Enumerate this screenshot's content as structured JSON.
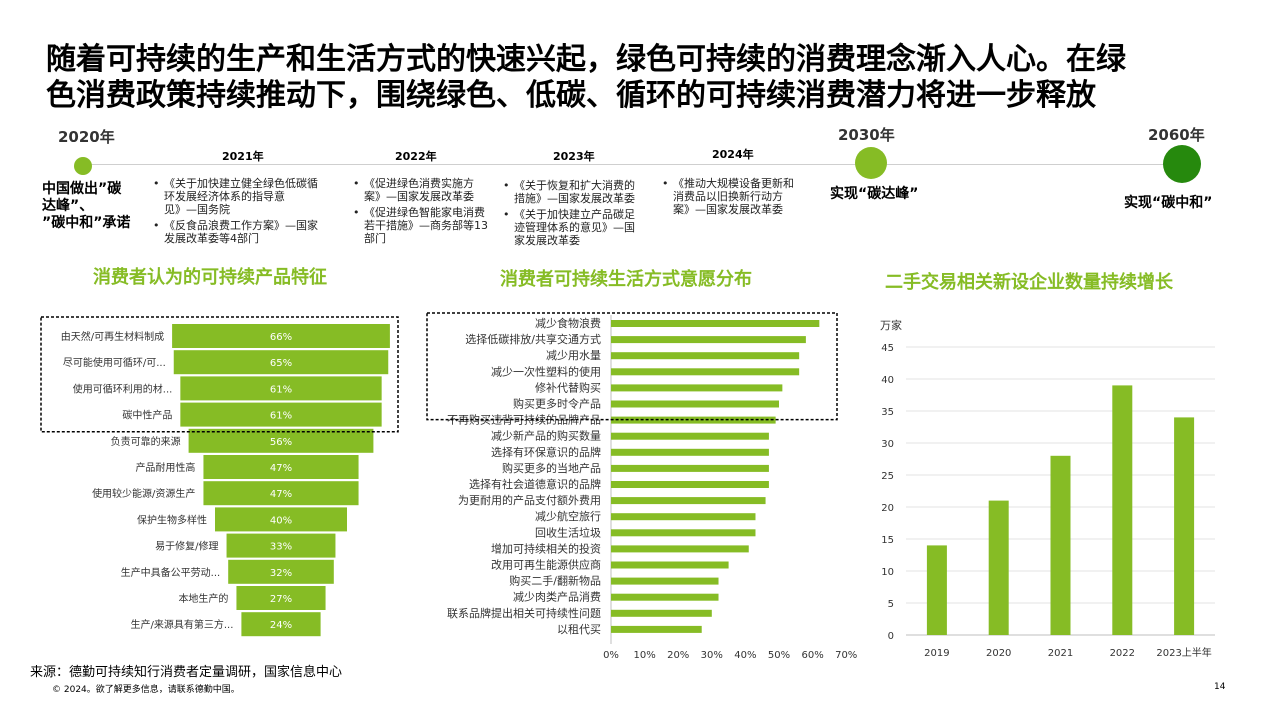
{
  "headline": {
    "line1": "随着可持续的生产和生活方式的快速兴起，绿色可持续的消费理念渐入人心。在绿",
    "line2": "色消费政策持续推动下，围绕绿色、低碳、循环的可持续消费潜力将进一步释放"
  },
  "timeline": {
    "colors": {
      "light_green": "#86bc25",
      "dark_green": "#26890d"
    },
    "y2020": {
      "year": "2020年",
      "note_lines": [
        "中国做出”碳",
        "达峰”、",
        "”碳中和”承诺"
      ]
    },
    "y2021": {
      "year": "2021年",
      "items": [
        {
          "bullet": "•",
          "lines": [
            "《关于加快建立健全绿色低碳循",
            "环发展经济体系的指导意",
            "见》—国务院"
          ]
        },
        {
          "bullet": "•",
          "lines": [
            "《反食品浪费工作方案》—国家",
            "发展改革委等4部门"
          ]
        }
      ]
    },
    "y2022": {
      "year": "2022年",
      "items": [
        {
          "bullet": "•",
          "lines": [
            "《促进绿色消费实施方",
            "案》—国家发展改革委"
          ]
        },
        {
          "bullet": "•",
          "lines": [
            "《促进绿色智能家电消费",
            "若干措施》—商务部等13",
            "部门"
          ]
        }
      ]
    },
    "y2023": {
      "year": "2023年",
      "items": [
        {
          "bullet": "•",
          "lines": [
            "《关于恢复和扩大消费的",
            "措施》—国家发展改革委"
          ]
        },
        {
          "bullet": "•",
          "lines": [
            "《关于加快建立产品碳足",
            "迹管理体系的意见》—国",
            "家发展改革委"
          ]
        }
      ]
    },
    "y2024": {
      "year": "2024年",
      "items": [
        {
          "bullet": "•",
          "lines": [
            "《推动大规模设备更新和",
            "消费品以旧换新行动方",
            "案》—国家发展改革委"
          ]
        }
      ]
    },
    "y2030": {
      "year": "2030年",
      "note": "实现“碳达峰”"
    },
    "y2060": {
      "year": "2060年",
      "note": "实现“碳中和”"
    }
  },
  "section_titles": {
    "funnel": "消费者认为的可持续产品特征",
    "hbar": "消费者可持续生活方式意愿分布",
    "vbar": "二手交易相关新设企业数量持续增长"
  },
  "chart_data": [
    {
      "type": "bar",
      "orientation": "horizontal-funnel",
      "title": "消费者认为的可持续产品特征",
      "categories": [
        "由天然/可再生材料制成",
        "尽可能使用可循环/可...",
        "使用可循环利用的材...",
        "碳中性产品",
        "负责可靠的来源",
        "产品耐用性高",
        "使用较少能源/资源生产",
        "保护生物多样性",
        "易于修复/修理",
        "生产中具备公平劳动...",
        "本地生产的",
        "生产/来源具有第三方..."
      ],
      "values": [
        66,
        65,
        61,
        61,
        56,
        47,
        47,
        40,
        33,
        32,
        27,
        24
      ],
      "data_labels": [
        "66%",
        "65%",
        "61%",
        "61%",
        "56%",
        "47%",
        "47%",
        "40%",
        "33%",
        "32%",
        "27%",
        "24%"
      ],
      "highlighted_top": 4,
      "bar_color": "#86bc25"
    },
    {
      "type": "bar",
      "orientation": "horizontal",
      "title": "消费者可持续生活方式意愿分布",
      "categories": [
        "减少食物浪费",
        "选择低碳排放/共享交通方式",
        "减少用水量",
        "减少一次性塑料的使用",
        "修补代替购买",
        "购买更多时令产品",
        "不再购买违背可持续的品牌产品",
        "减少新产品的购买数量",
        "选择有环保意识的品牌",
        "购买更多的当地产品",
        "选择有社会道德意识的品牌",
        "为更耐用的产品支付额外费用",
        "减少航空旅行",
        "回收生活垃圾",
        "增加可持续相关的投资",
        "改用可再生能源供应商",
        "购买二手/翻新物品",
        "减少肉类产品消费",
        "联系品牌提出相关可持续性问题",
        "以租代买"
      ],
      "values": [
        62,
        58,
        56,
        56,
        51,
        50,
        49,
        47,
        47,
        47,
        47,
        46,
        43,
        43,
        41,
        35,
        32,
        32,
        30,
        27
      ],
      "xlim": [
        0,
        70
      ],
      "xticks": [
        "0%",
        "10%",
        "20%",
        "30%",
        "40%",
        "50%",
        "60%",
        "70%"
      ],
      "highlighted_top": 6,
      "bar_color": "#86bc25"
    },
    {
      "type": "bar",
      "orientation": "vertical",
      "title": "二手交易相关新设企业数量持续增长",
      "ylabel": "万家",
      "categories": [
        "2019",
        "2020",
        "2021",
        "2022",
        "2023上半年"
      ],
      "values": [
        14,
        21,
        28,
        39,
        34
      ],
      "ylim": [
        0,
        45
      ],
      "yticks": [
        "0",
        "5",
        "10",
        "15",
        "20",
        "25",
        "30",
        "35",
        "40",
        "45"
      ],
      "grid": true,
      "bar_color": "#86bc25"
    }
  ],
  "footer": {
    "source": "来源：德勤可持续知行消费者定量调研，国家信息中心",
    "copyright": "© 2024。欲了解更多信息，请联系德勤中国。",
    "page": "14"
  }
}
